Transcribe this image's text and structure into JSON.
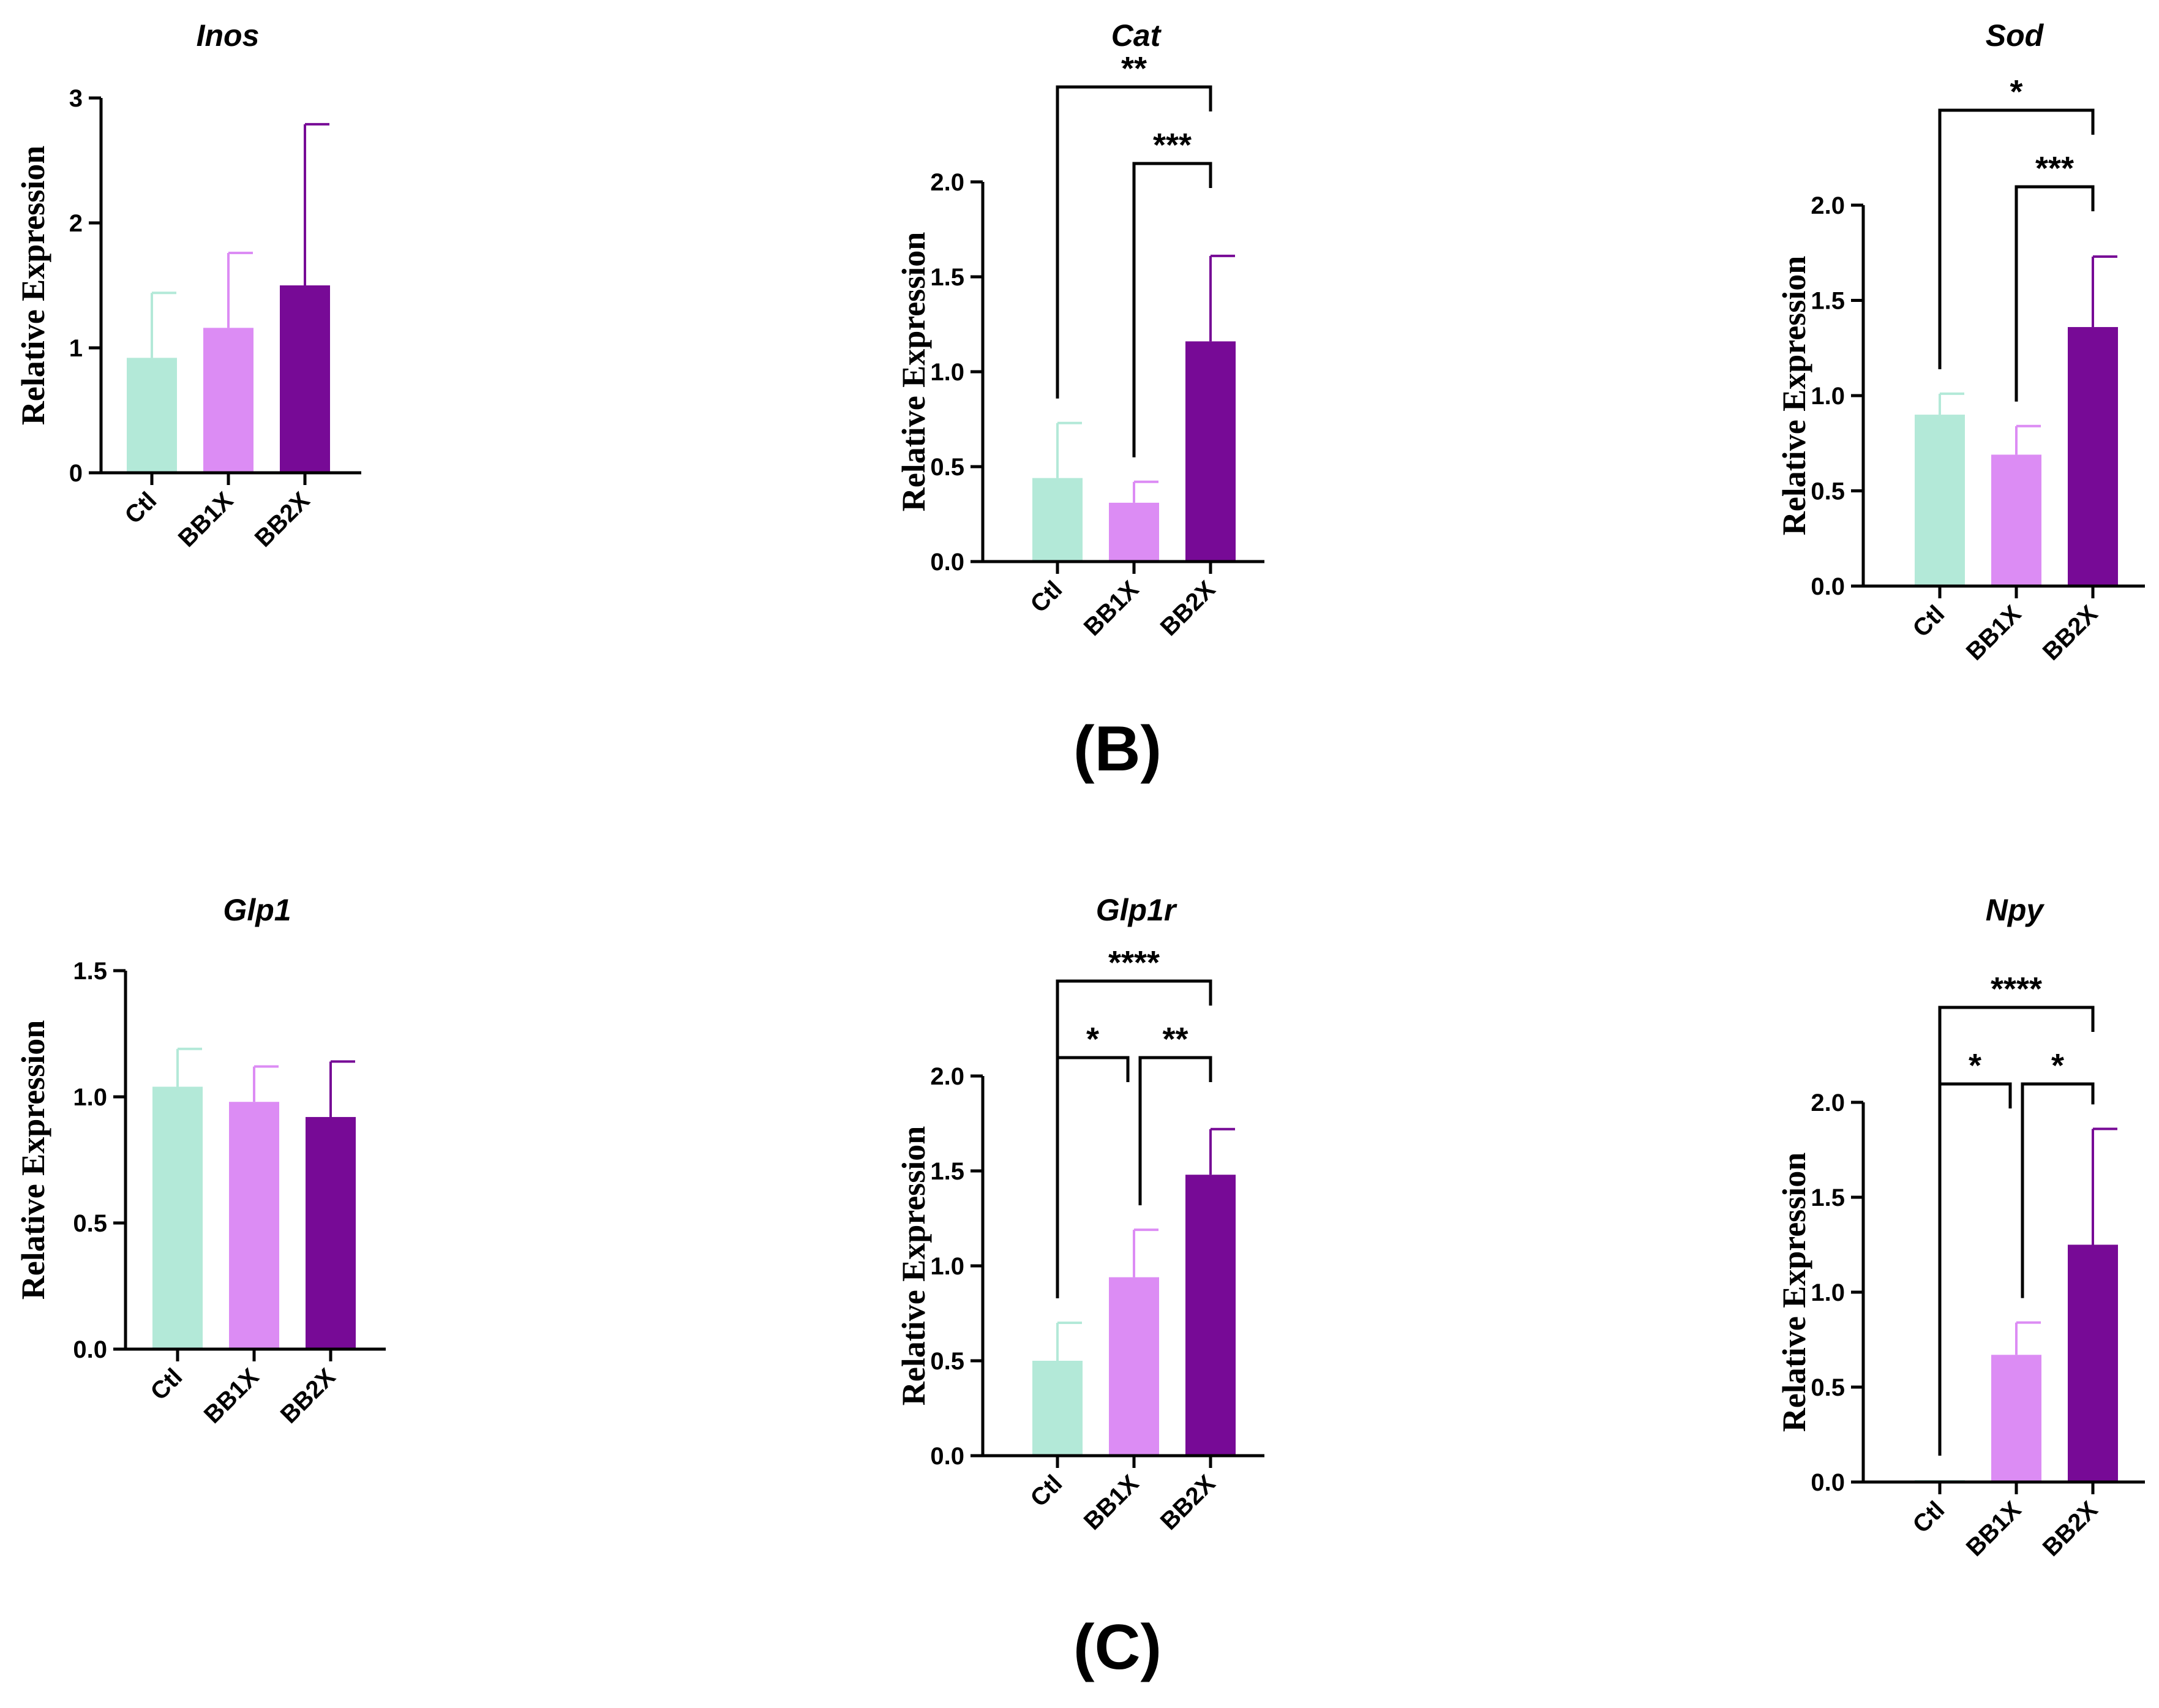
{
  "panel_labels": [
    "(B)",
    "(C)"
  ],
  "colors": {
    "Ctl": "#b3e9d8",
    "BB1X": "#dc8cf4",
    "BB2X": "#770a96"
  },
  "chart_data": [
    {
      "type": "bar",
      "title": "Inos",
      "ylabel": "Relative Expression",
      "categories": [
        "Ctl",
        "BB1X",
        "BB2X"
      ],
      "values": [
        0.92,
        1.16,
        1.5
      ],
      "errors": [
        0.52,
        0.6,
        1.29
      ],
      "ylim": [
        0,
        3
      ],
      "yticks": [
        "0",
        "1",
        "2",
        "3"
      ],
      "significance": []
    },
    {
      "type": "bar",
      "title": "Cat",
      "ylabel": "Relative Expression",
      "categories": [
        "Ctl",
        "BB1X",
        "BB2X"
      ],
      "values": [
        0.44,
        0.31,
        1.16
      ],
      "errors": [
        0.29,
        0.11,
        0.45
      ],
      "ylim": [
        0,
        2.0
      ],
      "yticks": [
        "0.0",
        "0.5",
        "1.0",
        "1.5",
        "2.0"
      ],
      "significance": [
        {
          "from": "BB1X",
          "to": "BB2X",
          "label": "***"
        },
        {
          "from": "Ctl",
          "to": "BB2X",
          "label": "**"
        }
      ]
    },
    {
      "type": "bar",
      "title": "Sod",
      "ylabel": "Relative Expression",
      "categories": [
        "Ctl",
        "BB1X",
        "BB2X"
      ],
      "values": [
        0.9,
        0.69,
        1.36
      ],
      "errors": [
        0.11,
        0.15,
        0.37
      ],
      "ylim": [
        0,
        2.0
      ],
      "yticks": [
        "0.0",
        "0.5",
        "1.0",
        "1.5",
        "2.0"
      ],
      "significance": [
        {
          "from": "BB1X",
          "to": "BB2X",
          "label": "***"
        },
        {
          "from": "Ctl",
          "to": "BB2X",
          "label": "*"
        }
      ]
    },
    {
      "type": "bar",
      "title": "Glp1",
      "ylabel": "Relative Expression",
      "categories": [
        "Ctl",
        "BB1X",
        "BB2X"
      ],
      "values": [
        1.04,
        0.98,
        0.92
      ],
      "errors": [
        0.15,
        0.14,
        0.22
      ],
      "ylim": [
        0,
        1.5
      ],
      "yticks": [
        "0.0",
        "0.5",
        "1.0",
        "1.5"
      ],
      "significance": []
    },
    {
      "type": "bar",
      "title": "Glp1r",
      "ylabel": "Relative Expression",
      "categories": [
        "Ctl",
        "BB1X",
        "BB2X"
      ],
      "values": [
        0.5,
        0.94,
        1.48
      ],
      "errors": [
        0.2,
        0.25,
        0.24
      ],
      "ylim": [
        0,
        2.0
      ],
      "yticks": [
        "0.0",
        "0.5",
        "1.0",
        "1.5",
        "2.0"
      ],
      "significance": [
        {
          "from": "Ctl",
          "to": "BB1X",
          "label": "*"
        },
        {
          "from": "BB1X",
          "to": "BB2X",
          "label": "**"
        },
        {
          "from": "Ctl",
          "to": "BB2X",
          "label": "****"
        }
      ]
    },
    {
      "type": "bar",
      "title": "Npy",
      "ylabel": "Relative Expression",
      "categories": [
        "Ctl",
        "BB1X",
        "BB2X"
      ],
      "values": [
        0.01,
        0.67,
        1.25
      ],
      "errors": [
        0.0,
        0.17,
        0.61
      ],
      "ylim": [
        0,
        2.0
      ],
      "yticks": [
        "0.0",
        "0.5",
        "1.0",
        "1.5",
        "2.0"
      ],
      "significance": [
        {
          "from": "Ctl",
          "to": "BB1X",
          "label": "*"
        },
        {
          "from": "BB1X",
          "to": "BB2X",
          "label": "*"
        },
        {
          "from": "Ctl",
          "to": "BB2X",
          "label": "****"
        }
      ]
    }
  ]
}
